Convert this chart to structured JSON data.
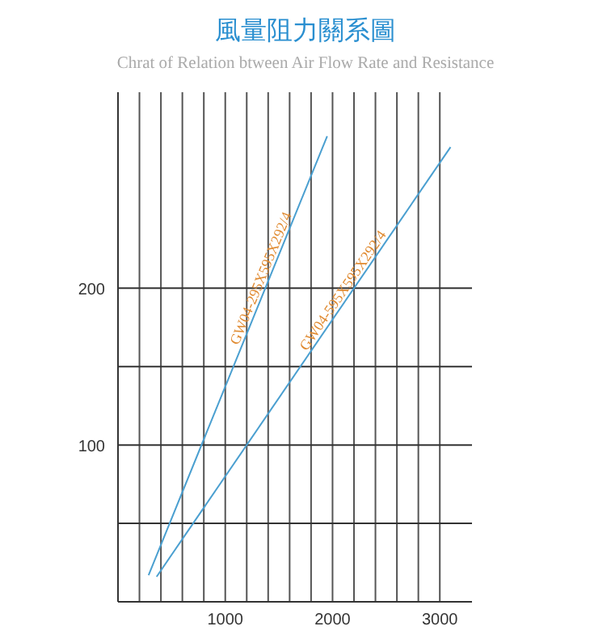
{
  "chart_data": {
    "type": "line",
    "title": "風量阻力關系圖",
    "subtitle": "Chrat of Relation btween Air Flow Rate and Resistance",
    "xlim": [
      0,
      3300
    ],
    "ylim": [
      0,
      325
    ],
    "xticks": [
      {
        "value": 200,
        "label": null
      },
      {
        "value": 400,
        "label": null
      },
      {
        "value": 600,
        "label": null
      },
      {
        "value": 800,
        "label": null
      },
      1000,
      {
        "value": 1200,
        "label": null
      },
      {
        "value": 1400,
        "label": null
      },
      {
        "value": 1600,
        "label": null
      },
      {
        "value": 1800,
        "label": null
      },
      2000,
      {
        "value": 2200,
        "label": null
      },
      {
        "value": 2400,
        "label": null
      },
      {
        "value": 2600,
        "label": null
      },
      {
        "value": 2800,
        "label": null
      },
      3000
    ],
    "yticks": [
      {
        "value": 50,
        "label": null
      },
      100,
      {
        "value": 150,
        "label": null
      },
      200
    ],
    "grid": true,
    "series": [
      {
        "name": "GW04-295X595X292/4",
        "color": "#4a9fd0",
        "x": [
          285,
          1950
        ],
        "values": [
          17,
          297
        ]
      },
      {
        "name": "GW04-595X595X292/4",
        "color": "#4a9fd0",
        "x": [
          360,
          3100
        ],
        "values": [
          16,
          290
        ]
      }
    ]
  }
}
